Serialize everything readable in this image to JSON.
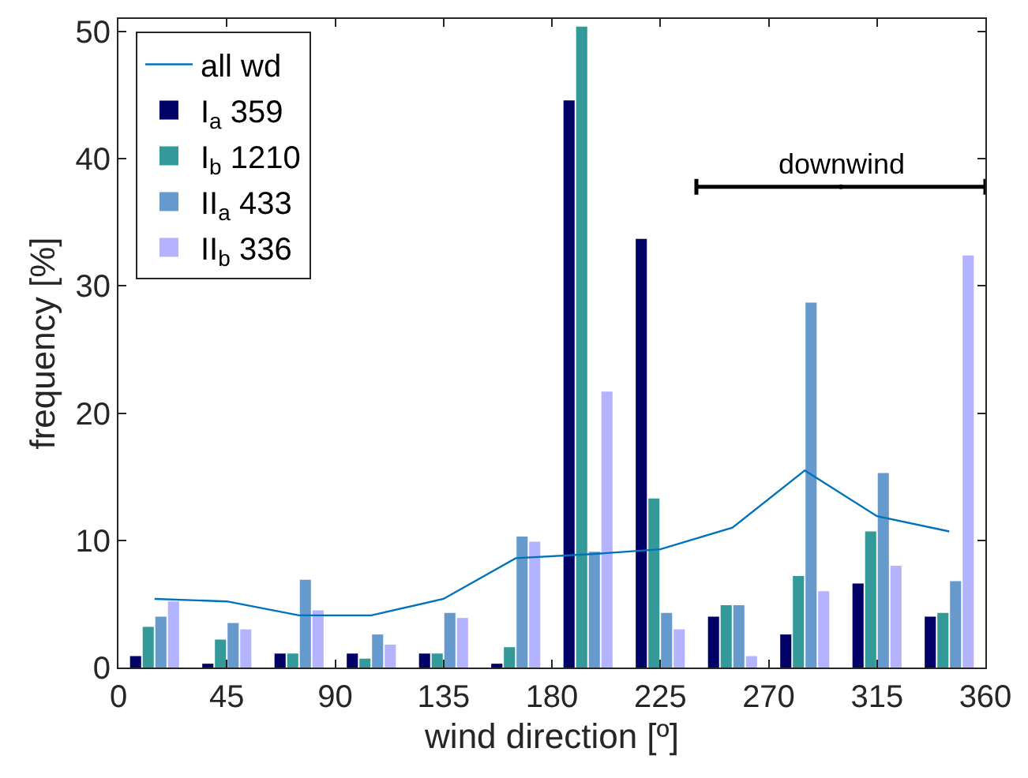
{
  "chart_data": {
    "type": "bar",
    "xlabel": "wind direction [º]",
    "ylabel": "frequency [%]",
    "x": [
      15,
      45,
      75,
      105,
      135,
      165,
      195,
      225,
      255,
      285,
      315,
      345
    ],
    "series": [
      {
        "name": "all wd",
        "type": "line",
        "color": "#0072bd",
        "values": [
          5.4,
          5.2,
          4.1,
          4.1,
          5.4,
          8.6,
          8.9,
          9.3,
          11.0,
          15.5,
          11.9,
          10.7
        ]
      },
      {
        "name": "I$_{a}$ 359",
        "color": "#000066",
        "values": [
          0.9,
          0.3,
          1.1,
          1.1,
          1.1,
          0.3,
          44.6,
          33.7,
          4.0,
          2.6,
          6.6,
          4.0
        ]
      },
      {
        "name": "I$_{b}$ 1210",
        "color": "#339999",
        "values": [
          3.2,
          2.2,
          1.1,
          0.7,
          1.1,
          1.6,
          50.4,
          13.3,
          4.9,
          7.2,
          10.7,
          4.3
        ]
      },
      {
        "name": "II$_{a}$ 433",
        "color": "#6699cc",
        "values": [
          4.0,
          3.5,
          6.9,
          2.6,
          4.3,
          10.3,
          9.1,
          4.3,
          4.9,
          28.7,
          15.3,
          6.8
        ]
      },
      {
        "name": "II$_{b}$ 336",
        "color": "#b3b3ff",
        "values": [
          5.2,
          3.0,
          4.5,
          1.8,
          3.9,
          9.9,
          21.7,
          3.0,
          0.9,
          6.0,
          8.0,
          32.4
        ]
      },
      {
        "type": "scatter",
        "color": "#000000",
        "marker": "none",
        "x": [
          300
        ],
        "values": [
          37.8
        ],
        "xerrors": [
          [
            240,
            360
          ]
        ]
      }
    ],
    "annotations": [
      {
        "text": "downwind",
        "x": 300,
        "y": 37.8
      }
    ],
    "xlim": [
      0,
      360
    ],
    "xticks": [
      0,
      45,
      90,
      135,
      180,
      225,
      270,
      315,
      360
    ],
    "ylim": [
      0,
      51
    ],
    "yticks": [
      0,
      10,
      20,
      30,
      40,
      50
    ],
    "legend": "top left"
  }
}
